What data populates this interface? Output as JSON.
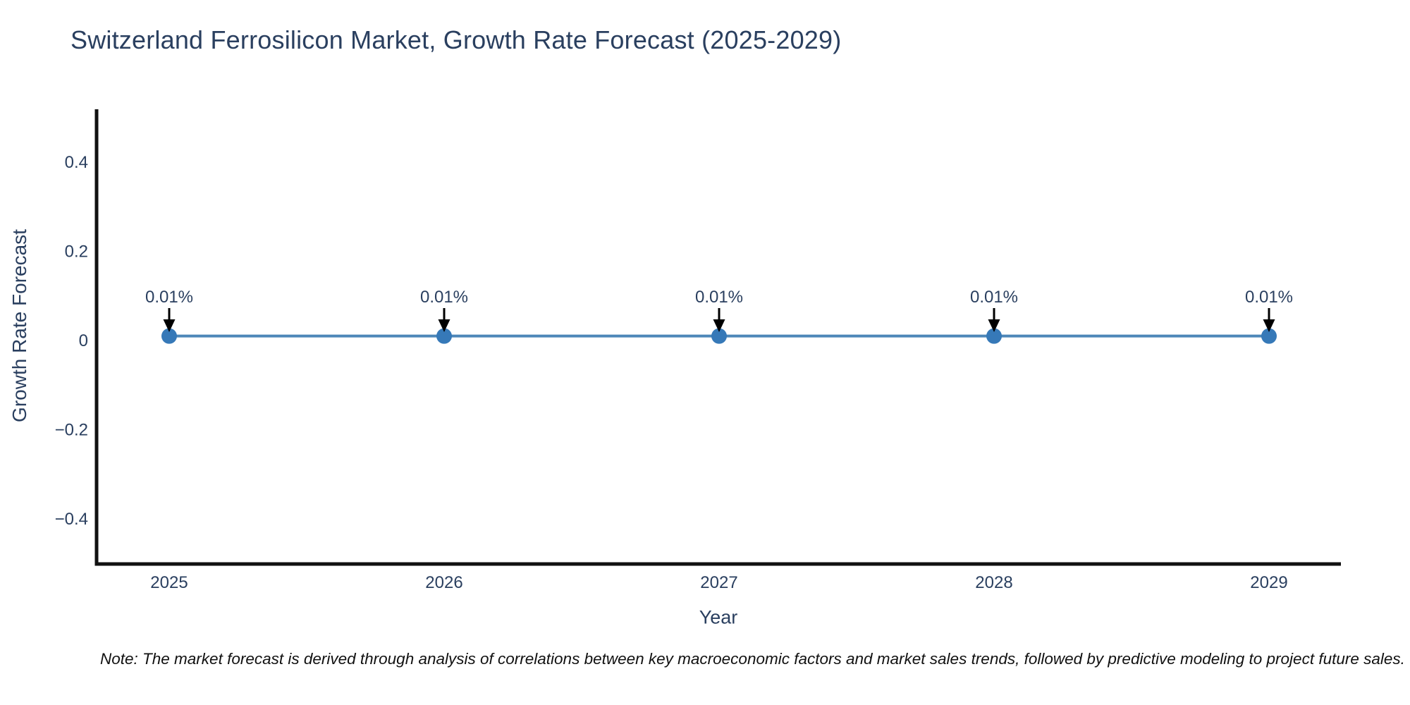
{
  "title": "Switzerland Ferrosilicon Market, Growth Rate Forecast (2025-2029)",
  "chart_data": {
    "type": "line",
    "x": [
      2025,
      2026,
      2027,
      2028,
      2029
    ],
    "xtick_labels": [
      "2025",
      "2026",
      "2027",
      "2028",
      "2029"
    ],
    "series": [
      {
        "name": "Growth Rate Forecast",
        "values": [
          0.01,
          0.01,
          0.01,
          0.01,
          0.01
        ]
      }
    ],
    "point_labels": [
      "0.01%",
      "0.01%",
      "0.01%",
      "0.01%",
      "0.01%"
    ],
    "xlabel": "Year",
    "ylabel": "Growth Rate Forecast",
    "yticks": [
      0.4,
      0.2,
      0,
      -0.2,
      -0.4
    ],
    "ytick_labels": [
      "0.4",
      "0.2",
      "0",
      "−0.2",
      "−0.4"
    ],
    "ylim": [
      -0.5,
      0.52
    ],
    "grid": false,
    "legend": "none",
    "colors": {
      "line": "#4d87b9",
      "marker": "#3679b8",
      "axis": "#111111",
      "text": "#2a3f5f",
      "arrow": "#000000"
    }
  },
  "note": {
    "text": "Note: The market forecast is derived through analysis of correlations between key macroeconomic factors and market sales trends, followed by predictive modeling to project future sales."
  }
}
